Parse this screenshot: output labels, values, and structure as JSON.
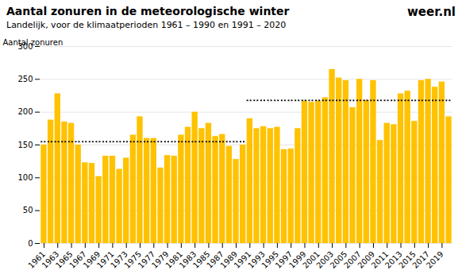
{
  "chart_data": {
    "type": "bar",
    "title": "Aantal zonuren in de meteorologische winter",
    "subtitle": "Landelijk, voor de klimaatperioden 1961 – 1990 en 1991 – 2020",
    "ylabel": "Aantal zonuren",
    "annotations": [
      "weer",
      ".nl"
    ],
    "categories": [
      "1961",
      null,
      "1963",
      null,
      "1965",
      null,
      "1967",
      null,
      "1969",
      null,
      "1971",
      null,
      "1973",
      null,
      "1975",
      null,
      "1977",
      null,
      "1979",
      null,
      "1981",
      null,
      "1983",
      null,
      "1985",
      null,
      "1987",
      null,
      "1989",
      null,
      "1991",
      null,
      "1993",
      null,
      "1995",
      null,
      "1997",
      null,
      "1999",
      null,
      "2001",
      null,
      "2003",
      null,
      "2005",
      null,
      "2007",
      null,
      "2009",
      null,
      "2011",
      null,
      "2013",
      null,
      "2015",
      null,
      "2017",
      null,
      "2019",
      null
    ],
    "values": [
      150,
      188,
      228,
      185,
      183,
      150,
      123,
      122,
      102,
      133,
      133,
      113,
      130,
      165,
      193,
      160,
      160,
      115,
      134,
      133,
      165,
      177,
      200,
      175,
      183,
      163,
      166,
      148,
      128,
      150,
      190,
      175,
      178,
      175,
      177,
      143,
      144,
      175,
      217,
      215,
      217,
      222,
      265,
      252,
      248,
      207,
      250,
      218,
      248,
      157,
      183,
      181,
      228,
      232,
      186,
      248,
      250,
      238,
      246,
      193
    ],
    "color": "#FFC200",
    "reference_lines": [
      {
        "value": 155,
        "start_index": 0,
        "end_index": 29
      },
      {
        "value": 218,
        "start_index": 30,
        "end_index": 59
      }
    ],
    "ylim": [
      0,
      300
    ],
    "yticks": [
      0,
      50,
      100,
      150,
      200,
      250,
      300
    ],
    "grid": true
  }
}
